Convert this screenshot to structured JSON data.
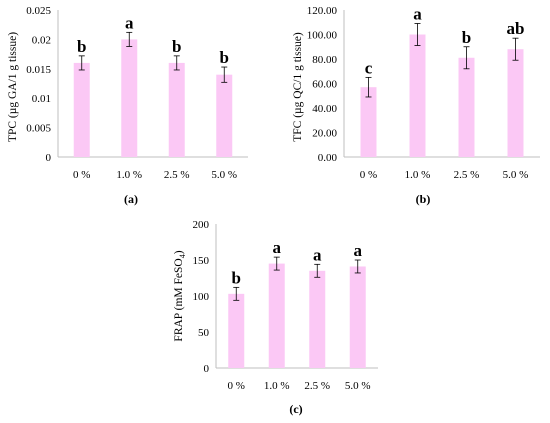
{
  "chart_data": [
    {
      "type": "bar",
      "panel_label": "(a)",
      "ylabel": "TPC (µg GA/1 g tissue)",
      "categories": [
        "0 %",
        "1.0 %",
        "2.5 %",
        "5.0 %"
      ],
      "values": [
        0.016,
        0.02,
        0.016,
        0.014
      ],
      "errors": [
        0.0012,
        0.0012,
        0.0012,
        0.0013
      ],
      "significance": [
        "b",
        "a",
        "b",
        "b"
      ],
      "ylim": [
        0,
        0.025
      ],
      "yticks": [
        "0",
        "0.005",
        "0.01",
        "0.015",
        "0.02",
        "0.025"
      ],
      "bar_color": "#fbc8f5",
      "grid": false
    },
    {
      "type": "bar",
      "panel_label": "(b)",
      "ylabel": "TFC (µg QC/1 g tissue)",
      "categories": [
        "0 %",
        "1.0 %",
        "2.5 %",
        "5.0 %"
      ],
      "values": [
        57,
        100,
        81,
        88
      ],
      "errors": [
        8,
        9,
        9,
        9
      ],
      "significance": [
        "c",
        "a",
        "b",
        "ab"
      ],
      "ylim": [
        0,
        120
      ],
      "yticks": [
        "0.00",
        "20.00",
        "40.00",
        "60.00",
        "80.00",
        "100.00",
        "120.00"
      ],
      "bar_color": "#fbc8f5",
      "grid": false
    },
    {
      "type": "bar",
      "panel_label": "(c)",
      "ylabel_main": "FRAP (mM FeSO",
      "ylabel_sub": "4",
      "ylabel_end": ")",
      "categories": [
        "0 %",
        "1.0 %",
        "2.5 %",
        "5.0 %"
      ],
      "values": [
        103,
        145,
        135,
        141
      ],
      "errors": [
        9,
        9,
        9,
        9
      ],
      "significance": [
        "b",
        "a",
        "a",
        "a"
      ],
      "ylim": [
        0,
        200
      ],
      "yticks": [
        "0",
        "50",
        "100",
        "150",
        "200"
      ],
      "bar_color": "#fbc8f5",
      "grid": false
    }
  ]
}
